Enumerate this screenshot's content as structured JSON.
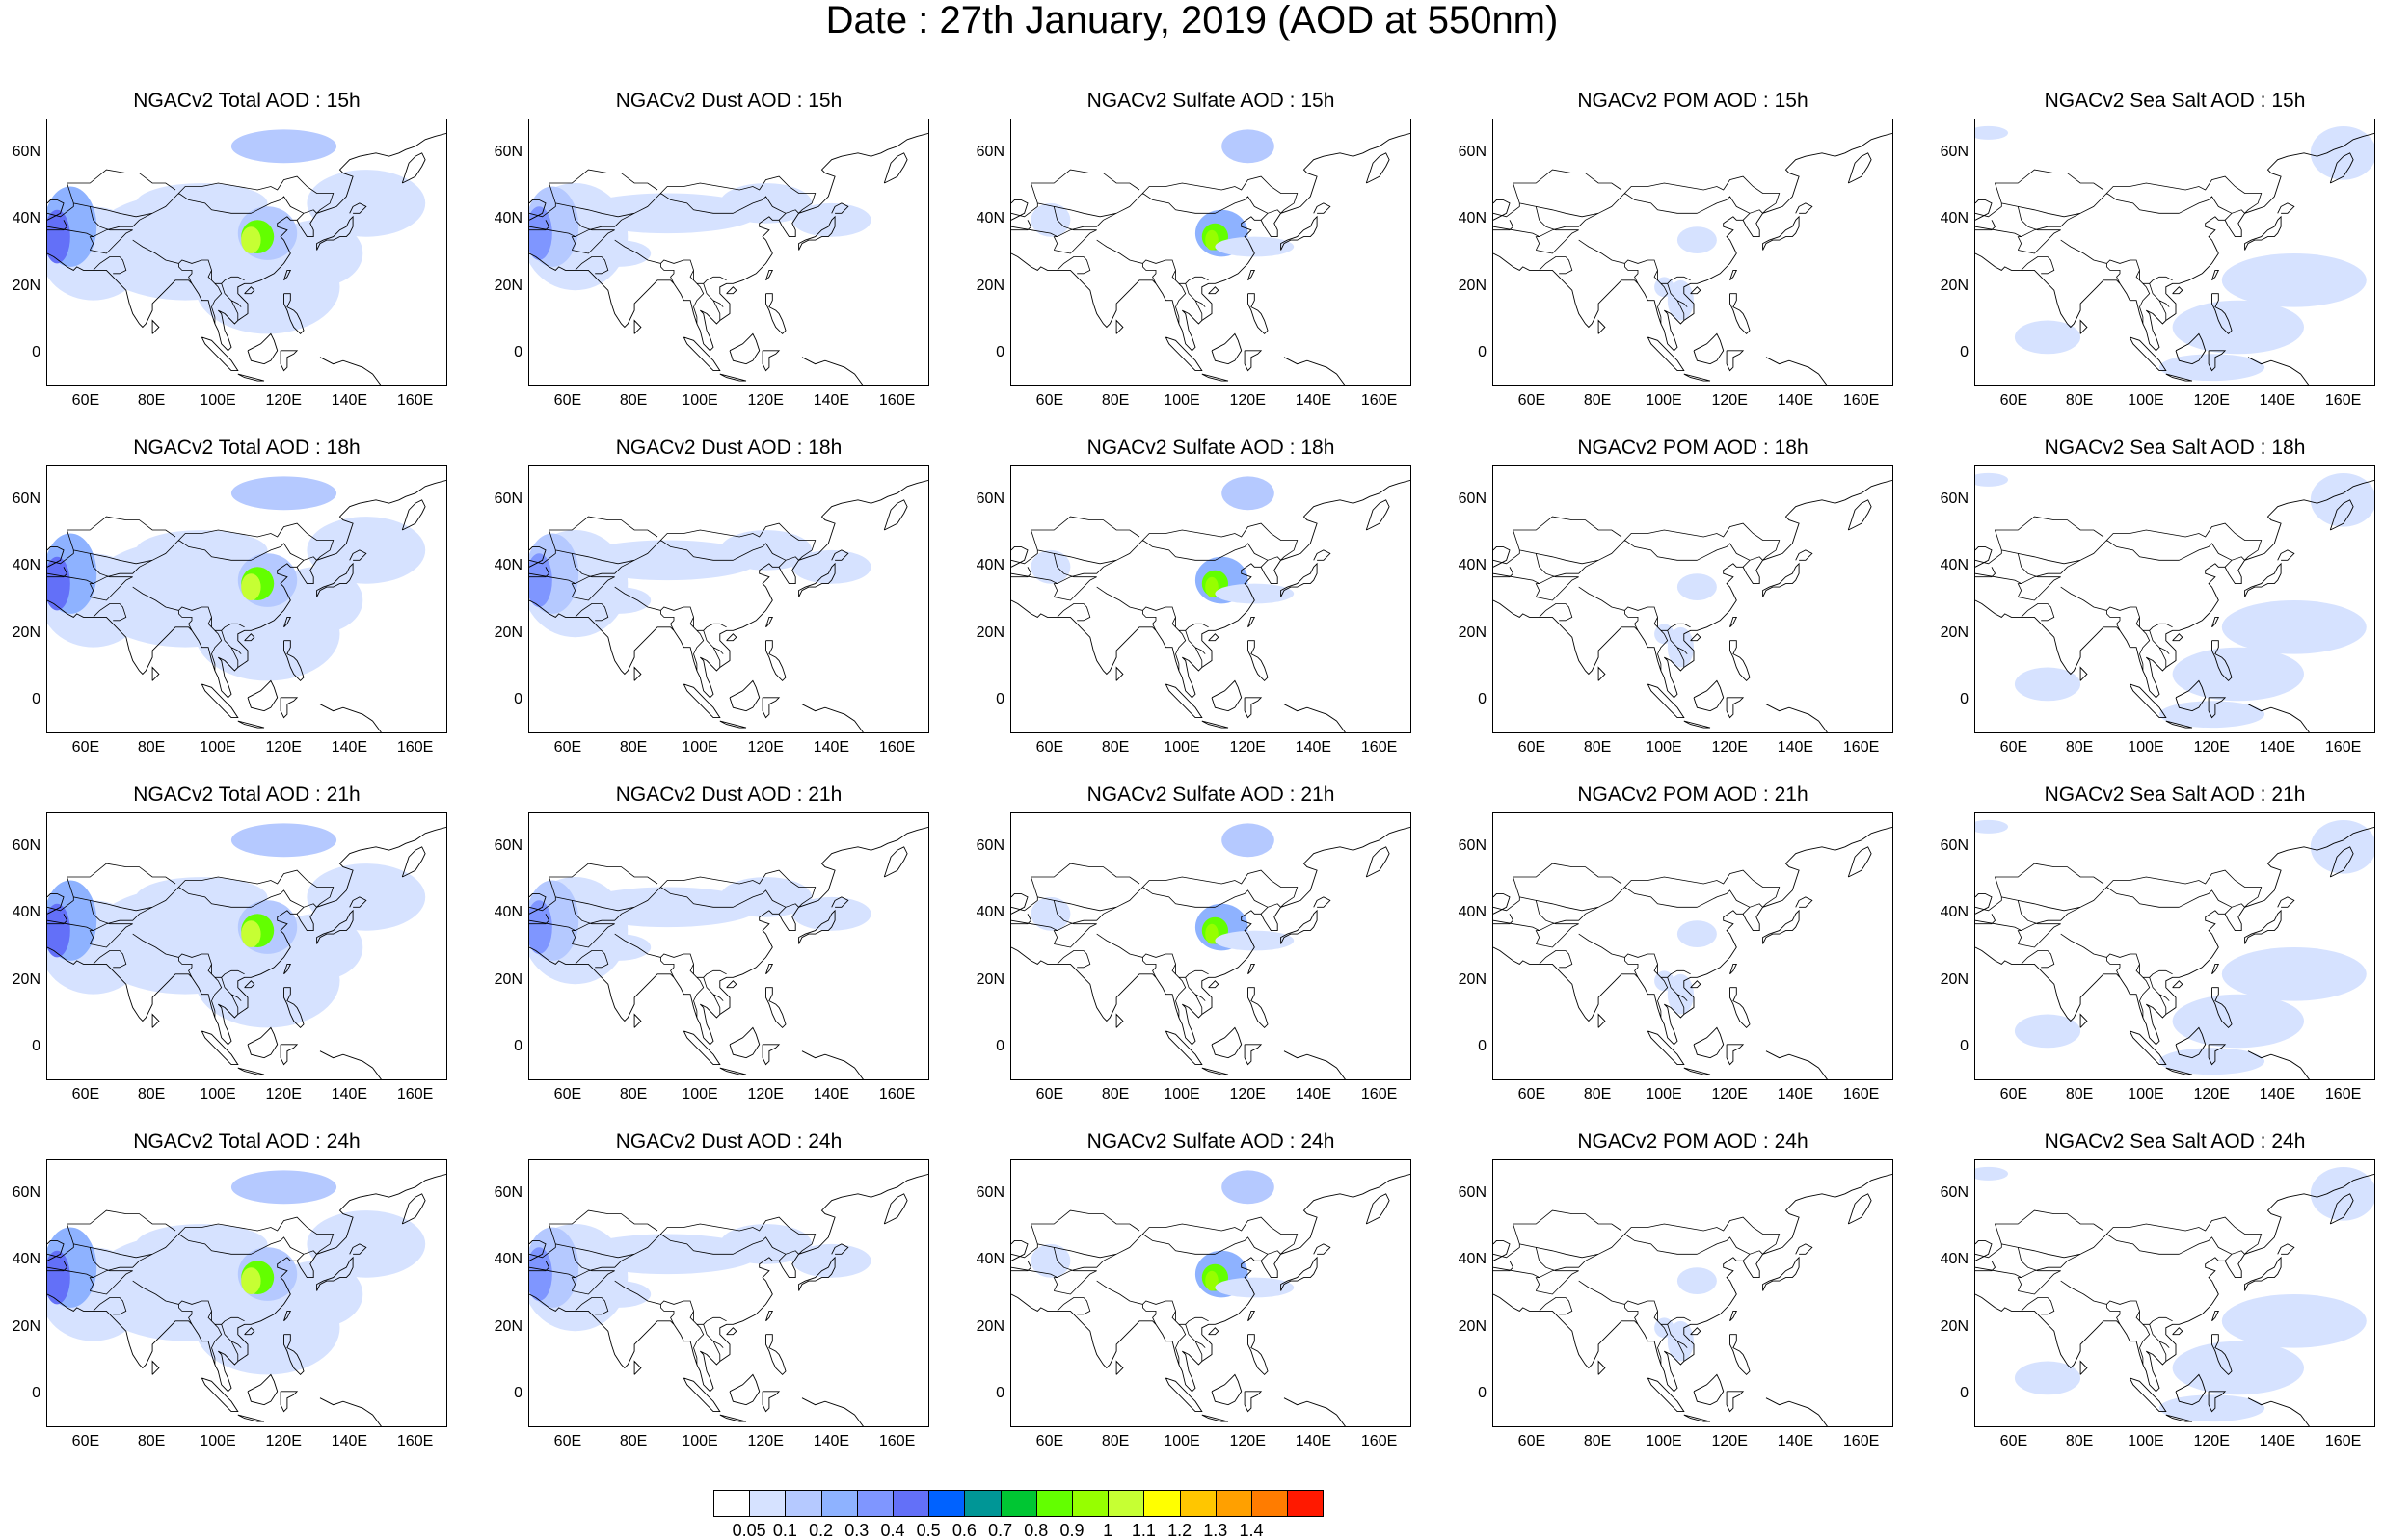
{
  "title": "Date : 27th January, 2019 (AOD at 550nm)",
  "lon_ticks": [
    "60E",
    "80E",
    "100E",
    "120E",
    "140E",
    "160E"
  ],
  "lat_ticks": [
    "60N",
    "40N",
    "20N",
    "0"
  ],
  "panels": [
    {
      "title": "NGACv2 Total AOD : 15h",
      "species": "total",
      "hour": 15
    },
    {
      "title": "NGACv2 Dust AOD : 15h",
      "species": "dust",
      "hour": 15
    },
    {
      "title": "NGACv2 Sulfate AOD : 15h",
      "species": "sulfate",
      "hour": 15
    },
    {
      "title": "NGACv2 POM AOD : 15h",
      "species": "pom",
      "hour": 15
    },
    {
      "title": "NGACv2 Sea Salt AOD : 15h",
      "species": "seasalt",
      "hour": 15
    },
    {
      "title": "NGACv2 Total AOD : 18h",
      "species": "total",
      "hour": 18
    },
    {
      "title": "NGACv2 Dust AOD : 18h",
      "species": "dust",
      "hour": 18
    },
    {
      "title": "NGACv2 Sulfate AOD : 18h",
      "species": "sulfate",
      "hour": 18
    },
    {
      "title": "NGACv2 POM AOD : 18h",
      "species": "pom",
      "hour": 18
    },
    {
      "title": "NGACv2 Sea Salt AOD : 18h",
      "species": "seasalt",
      "hour": 18
    },
    {
      "title": "NGACv2 Total AOD : 21h",
      "species": "total",
      "hour": 21
    },
    {
      "title": "NGACv2 Dust AOD : 21h",
      "species": "dust",
      "hour": 21
    },
    {
      "title": "NGACv2 Sulfate AOD : 21h",
      "species": "sulfate",
      "hour": 21
    },
    {
      "title": "NGACv2 POM AOD : 21h",
      "species": "pom",
      "hour": 21
    },
    {
      "title": "NGACv2 Sea Salt AOD : 21h",
      "species": "seasalt",
      "hour": 21
    },
    {
      "title": "NGACv2 Total AOD : 24h",
      "species": "total",
      "hour": 24
    },
    {
      "title": "NGACv2 Dust AOD : 24h",
      "species": "dust",
      "hour": 24
    },
    {
      "title": "NGACv2 Sulfate AOD : 24h",
      "species": "sulfate",
      "hour": 24
    },
    {
      "title": "NGACv2 POM AOD : 24h",
      "species": "pom",
      "hour": 24
    },
    {
      "title": "NGACv2 Sea Salt  AOD : 24h",
      "species": "seasalt",
      "hour": 24
    }
  ],
  "colorbar": {
    "labels": [
      "0.05",
      "0.1",
      "0.2",
      "0.3",
      "0.4",
      "0.5",
      "0.6",
      "0.7",
      "0.8",
      "0.9",
      "1",
      "1.1",
      "1.2",
      "1.3",
      "1.4"
    ],
    "colors": [
      "#ffffff",
      "#d6e2ff",
      "#b5c9ff",
      "#8eb2ff",
      "#7f96ff",
      "#6370f8",
      "#0062ff",
      "#009696",
      "#00c633",
      "#63ff00",
      "#96ff00",
      "#c6ff33",
      "#ffff00",
      "#ffc600",
      "#ffa000",
      "#ff7c00",
      "#ff1900"
    ]
  }
}
